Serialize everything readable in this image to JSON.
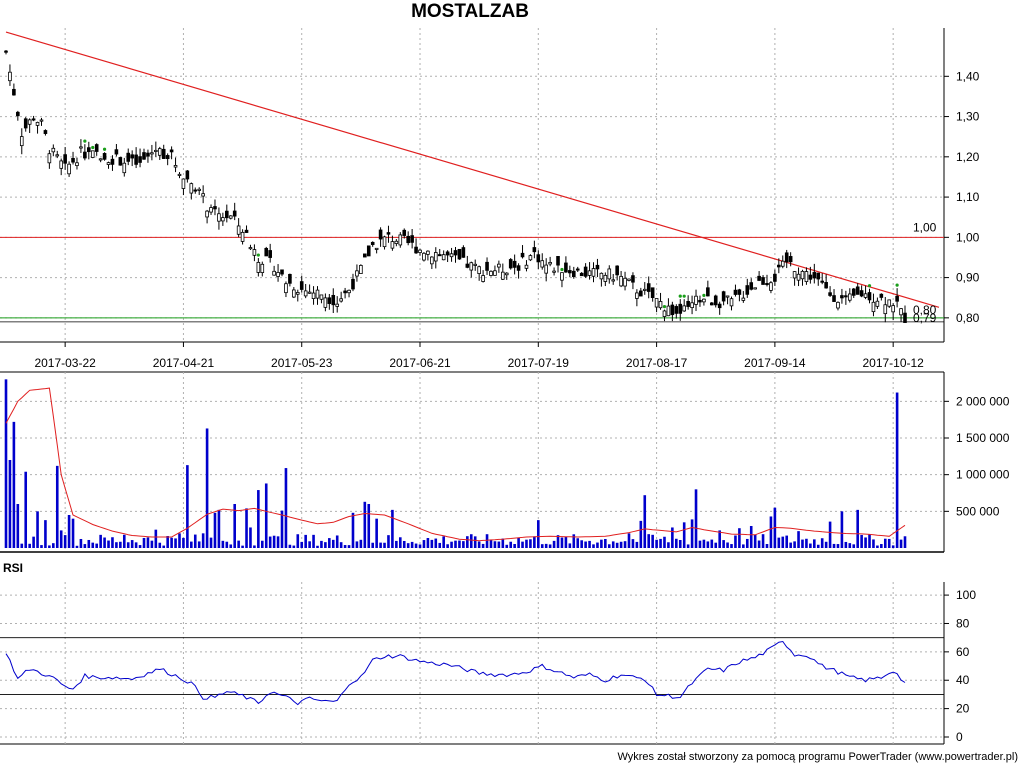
{
  "title": "MOSTALZAB",
  "footer": "Wykres został stworzony za pomocą programu PowerTrader (www.powertrader.pl)",
  "colors": {
    "up": "#1a9e1a",
    "down": "#d42020",
    "candle": "#000000",
    "trendline": "#e02020",
    "resistance": "#e02020",
    "support": "#1a9e1a",
    "volume_bar": "#0000cc",
    "volume_avg": "#e02020",
    "rsi_line": "#0000cc",
    "grid": "#b0b0b0"
  },
  "chart_data": [
    {
      "type": "candlestick",
      "name": "price",
      "ylim": [
        0.74,
        1.52
      ],
      "yticks": [
        "1,40",
        "1,30",
        "1,20",
        "1,10",
        "1,00",
        "0,90",
        "0,80"
      ],
      "ytick_values": [
        1.4,
        1.3,
        1.2,
        1.1,
        1.0,
        0.9,
        0.8
      ],
      "date_labels": [
        "2017-03-22",
        "2017-04-21",
        "2017-05-23",
        "2017-06-21",
        "2017-07-19",
        "2017-08-17",
        "2017-09-14",
        "2017-10-12"
      ],
      "date_label_index": [
        15,
        45,
        75,
        105,
        135,
        165,
        195,
        225
      ],
      "n_days": 229,
      "anchors": [
        [
          0,
          1.46
        ],
        [
          2,
          1.36
        ],
        [
          4,
          1.26
        ],
        [
          7,
          1.3
        ],
        [
          9,
          1.28
        ],
        [
          11,
          1.22
        ],
        [
          15,
          1.17
        ],
        [
          19,
          1.21
        ],
        [
          25,
          1.2
        ],
        [
          30,
          1.19
        ],
        [
          34,
          1.18
        ],
        [
          38,
          1.22
        ],
        [
          42,
          1.2
        ],
        [
          45,
          1.15
        ],
        [
          48,
          1.13
        ],
        [
          52,
          1.06
        ],
        [
          57,
          1.05
        ],
        [
          60,
          1.02
        ],
        [
          64,
          0.95
        ],
        [
          68,
          0.93
        ],
        [
          71,
          0.89
        ],
        [
          75,
          0.87
        ],
        [
          80,
          0.86
        ],
        [
          84,
          0.84
        ],
        [
          87,
          0.87
        ],
        [
          90,
          0.92
        ],
        [
          93,
          0.98
        ],
        [
          97,
          1.0
        ],
        [
          101,
          0.99
        ],
        [
          105,
          0.97
        ],
        [
          110,
          0.96
        ],
        [
          115,
          0.94
        ],
        [
          120,
          0.92
        ],
        [
          125,
          0.92
        ],
        [
          130,
          0.93
        ],
        [
          134,
          0.96
        ],
        [
          137,
          0.93
        ],
        [
          142,
          0.92
        ],
        [
          147,
          0.91
        ],
        [
          152,
          0.91
        ],
        [
          156,
          0.9
        ],
        [
          160,
          0.87
        ],
        [
          164,
          0.85
        ],
        [
          167,
          0.83
        ],
        [
          170,
          0.81
        ],
        [
          173,
          0.82
        ],
        [
          176,
          0.85
        ],
        [
          180,
          0.84
        ],
        [
          184,
          0.84
        ],
        [
          187,
          0.86
        ],
        [
          191,
          0.89
        ],
        [
          195,
          0.9
        ],
        [
          198,
          0.94
        ],
        [
          201,
          0.92
        ],
        [
          205,
          0.9
        ],
        [
          209,
          0.86
        ],
        [
          213,
          0.84
        ],
        [
          217,
          0.86
        ],
        [
          221,
          0.85
        ],
        [
          225,
          0.84
        ],
        [
          228,
          0.8
        ]
      ],
      "overlays": {
        "trendline": {
          "from": [
            0,
            1.51
          ],
          "to": [
            229,
            0.825
          ]
        },
        "resistance": {
          "value": 1.0,
          "label": "1,00"
        },
        "support": {
          "value": 0.8
        },
        "support_lower": {
          "value": 0.79
        },
        "price_labels": [
          "0,80",
          "0,79"
        ]
      }
    },
    {
      "type": "bar",
      "name": "volume",
      "ylim": [
        0,
        2400000
      ],
      "yticks": [
        "2 000 000",
        "1 500 000",
        "1 000 000",
        "500 000"
      ],
      "ytick_values": [
        2000000,
        1500000,
        1000000,
        500000
      ],
      "spikes": [
        [
          0,
          2300000
        ],
        [
          1,
          1200000
        ],
        [
          2,
          1720000
        ],
        [
          3,
          600000
        ],
        [
          5,
          1040000
        ],
        [
          8,
          500000
        ],
        [
          10,
          380000
        ],
        [
          13,
          1120000
        ],
        [
          14,
          240000
        ],
        [
          16,
          450000
        ],
        [
          17,
          400000
        ],
        [
          30,
          180000
        ],
        [
          38,
          250000
        ],
        [
          44,
          200000
        ],
        [
          46,
          1130000
        ],
        [
          50,
          200000
        ],
        [
          51,
          1630000
        ],
        [
          53,
          480000
        ],
        [
          54,
          520000
        ],
        [
          58,
          600000
        ],
        [
          61,
          540000
        ],
        [
          62,
          280000
        ],
        [
          64,
          790000
        ],
        [
          66,
          880000
        ],
        [
          70,
          510000
        ],
        [
          71,
          1090000
        ],
        [
          88,
          480000
        ],
        [
          91,
          630000
        ],
        [
          92,
          600000
        ],
        [
          94,
          400000
        ],
        [
          98,
          520000
        ],
        [
          135,
          380000
        ],
        [
          158,
          200000
        ],
        [
          161,
          370000
        ],
        [
          162,
          720000
        ],
        [
          169,
          280000
        ],
        [
          172,
          350000
        ],
        [
          174,
          390000
        ],
        [
          175,
          800000
        ],
        [
          181,
          240000
        ],
        [
          186,
          270000
        ],
        [
          189,
          300000
        ],
        [
          194,
          430000
        ],
        [
          195,
          550000
        ],
        [
          201,
          230000
        ],
        [
          209,
          360000
        ],
        [
          212,
          500000
        ],
        [
          216,
          520000
        ],
        [
          226,
          2120000
        ]
      ],
      "avg_anchors": [
        [
          0,
          1700000
        ],
        [
          3,
          2000000
        ],
        [
          6,
          2150000
        ],
        [
          11,
          2180000
        ],
        [
          12,
          1800000
        ],
        [
          14,
          1000000
        ],
        [
          17,
          450000
        ],
        [
          22,
          320000
        ],
        [
          27,
          230000
        ],
        [
          32,
          170000
        ],
        [
          37,
          150000
        ],
        [
          42,
          150000
        ],
        [
          46,
          270000
        ],
        [
          51,
          460000
        ],
        [
          55,
          530000
        ],
        [
          59,
          510000
        ],
        [
          63,
          540000
        ],
        [
          66,
          500000
        ],
        [
          70,
          450000
        ],
        [
          75,
          380000
        ],
        [
          79,
          330000
        ],
        [
          83,
          350000
        ],
        [
          87,
          430000
        ],
        [
          91,
          470000
        ],
        [
          96,
          450000
        ],
        [
          102,
          330000
        ],
        [
          108,
          200000
        ],
        [
          115,
          120000
        ],
        [
          120,
          100000
        ],
        [
          126,
          120000
        ],
        [
          132,
          150000
        ],
        [
          138,
          160000
        ],
        [
          145,
          150000
        ],
        [
          152,
          160000
        ],
        [
          158,
          210000
        ],
        [
          162,
          260000
        ],
        [
          166,
          240000
        ],
        [
          170,
          220000
        ],
        [
          174,
          280000
        ],
        [
          178,
          240000
        ],
        [
          184,
          190000
        ],
        [
          190,
          180000
        ],
        [
          195,
          280000
        ],
        [
          199,
          270000
        ],
        [
          205,
          230000
        ],
        [
          212,
          200000
        ],
        [
          218,
          190000
        ],
        [
          224,
          160000
        ],
        [
          228,
          310000
        ]
      ]
    },
    {
      "type": "line",
      "name": "RSI",
      "label": "RSI",
      "ylim": [
        0,
        105
      ],
      "yticks": [
        "100",
        "80",
        "60",
        "40",
        "20",
        "0"
      ],
      "ytick_values": [
        100,
        80,
        60,
        40,
        20,
        0
      ],
      "levels": [
        70,
        30
      ],
      "anchors": [
        [
          0,
          60
        ],
        [
          3,
          41
        ],
        [
          6,
          48
        ],
        [
          10,
          44
        ],
        [
          13,
          40
        ],
        [
          15,
          35
        ],
        [
          17,
          34
        ],
        [
          20,
          43
        ],
        [
          23,
          42
        ],
        [
          27,
          42
        ],
        [
          32,
          41
        ],
        [
          36,
          45
        ],
        [
          39,
          48
        ],
        [
          44,
          42
        ],
        [
          47,
          38
        ],
        [
          50,
          28
        ],
        [
          53,
          28
        ],
        [
          56,
          32
        ],
        [
          60,
          29
        ],
        [
          64,
          24
        ],
        [
          67,
          32
        ],
        [
          71,
          28
        ],
        [
          74,
          24
        ],
        [
          77,
          27
        ],
        [
          81,
          25
        ],
        [
          84,
          25
        ],
        [
          87,
          38
        ],
        [
          90,
          42
        ],
        [
          93,
          54
        ],
        [
          96,
          57
        ],
        [
          100,
          57
        ],
        [
          104,
          54
        ],
        [
          108,
          52
        ],
        [
          112,
          51
        ],
        [
          116,
          48
        ],
        [
          120,
          45
        ],
        [
          124,
          44
        ],
        [
          128,
          44
        ],
        [
          132,
          46
        ],
        [
          136,
          50
        ],
        [
          140,
          46
        ],
        [
          144,
          42
        ],
        [
          148,
          44
        ],
        [
          152,
          40
        ],
        [
          156,
          44
        ],
        [
          159,
          42
        ],
        [
          162,
          41
        ],
        [
          165,
          30
        ],
        [
          168,
          29
        ],
        [
          171,
          28
        ],
        [
          174,
          38
        ],
        [
          178,
          48
        ],
        [
          182,
          47
        ],
        [
          186,
          53
        ],
        [
          190,
          56
        ],
        [
          194,
          62
        ],
        [
          197,
          68
        ],
        [
          200,
          58
        ],
        [
          203,
          58
        ],
        [
          207,
          50
        ],
        [
          210,
          47
        ],
        [
          214,
          42
        ],
        [
          218,
          40
        ],
        [
          222,
          42
        ],
        [
          225,
          47
        ],
        [
          228,
          38
        ]
      ]
    }
  ]
}
